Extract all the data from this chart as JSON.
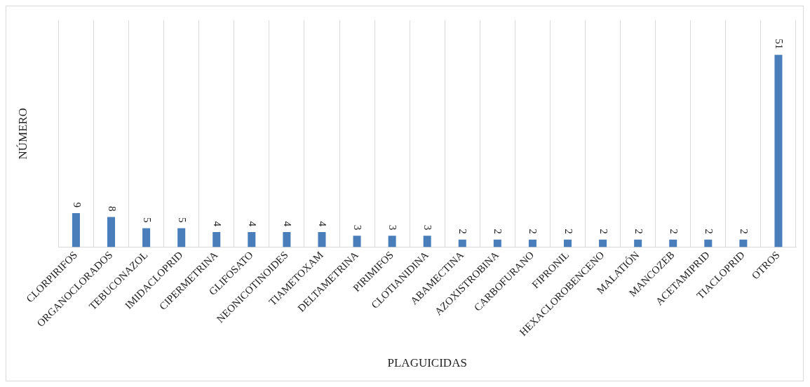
{
  "chart_data": {
    "type": "bar",
    "xlabel": "PLAGUICIDAS",
    "ylabel": "NÚMERO",
    "categories": [
      "CLORPIRIFOS",
      "ORGANOCLORADOS",
      "TEBUCONAZOL",
      "IMIDACLOPRID",
      "CIPERMETRINA",
      "GLIFOSATO",
      "NEONICOTINOIDES",
      "TIAMETOXAM",
      "DELTAMETRINA",
      "PIRIMIFOS",
      "CLOTIANIDINA",
      "ABAMECTINA",
      "AZOXISTROBINA",
      "CARBOFURANO",
      "FIPRONIL",
      "HEXACLOROBENCENO",
      "MALATIÓN",
      "MANCOZEB",
      "ACETAMIPRID",
      "TIACLOPRID",
      "OTROS"
    ],
    "values": [
      9,
      8,
      5,
      5,
      4,
      4,
      4,
      4,
      3,
      3,
      3,
      2,
      2,
      2,
      2,
      2,
      2,
      2,
      2,
      2,
      51
    ],
    "color": "#4a7ebb",
    "data_labels": true,
    "grid": "x",
    "tick_labels": "x",
    "legend": false
  }
}
